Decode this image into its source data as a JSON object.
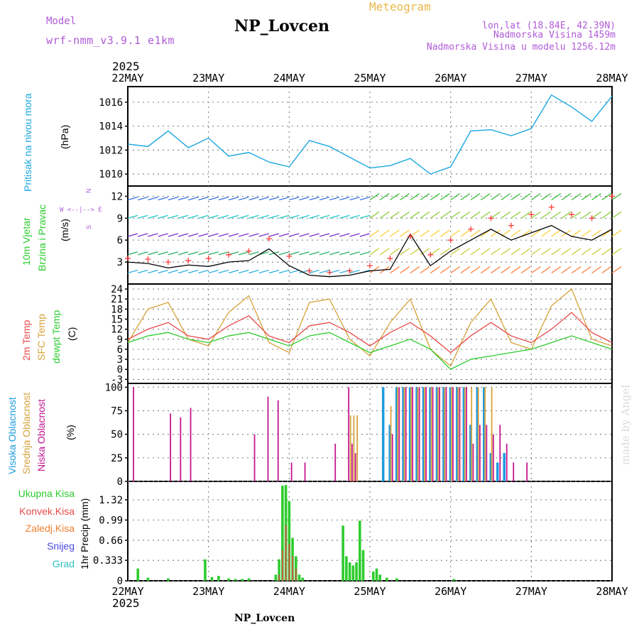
{
  "header": {
    "model_label": "Model",
    "model_name": "wrf-nmm_v3.9.1 e1km",
    "station": "NP_Lovcen",
    "product": "Meteogram",
    "lonlat": "lon,lat (18.84E, 42.39N)",
    "altitude": "Nadmorska Visina 1459m",
    "model_altitude": "Nadmorska Visina u modelu 1256.12m",
    "year": "2025",
    "footer_station": "NP_Lovcen",
    "watermark": "made by Angel"
  },
  "colors": {
    "pressure": "#1aa7e0",
    "wind_speed": "#000000",
    "gust_marker": "#ff3b3b",
    "temp_2m": "#e84a4a",
    "temp_sfc": "#d7a23a",
    "dewpoint": "#2ecc2e",
    "cloud_high": "#1e9be0",
    "cloud_mid": "#d7a23a",
    "cloud_low": "#c2168e",
    "precip_total": "#2ecc2e",
    "precip_conv": "#e84a4a",
    "title_purple": "#b05ad8",
    "title_orange": "#e8b84a"
  },
  "axes": {
    "x_dates": [
      "22MAY",
      "23MAY",
      "24MAY",
      "25MAY",
      "26MAY",
      "27MAY",
      "28MAY"
    ]
  },
  "panels": {
    "pressure": {
      "label": "Pritisak na nivou mora",
      "unit": "(hPa)",
      "ticks": [
        "1010",
        "1012",
        "1014",
        "1016"
      ]
    },
    "wind": {
      "label_line1": "10m Vjetar",
      "label_line2": "Brzina i Pravac",
      "unit": "(m/s)",
      "compass_ns": "N",
      "compass_ew": "W  <--|-->  E",
      "compass_s": "S",
      "ticks": [
        "3",
        "6",
        "9",
        "12"
      ]
    },
    "temp": {
      "label_2m": "2m Temp",
      "label_sfc": "SFC Temp",
      "label_dew": "dewpt Temp",
      "unit": "(C)",
      "ticks": [
        "-3",
        "0",
        "3",
        "6",
        "9",
        "12",
        "15",
        "18",
        "21",
        "24"
      ]
    },
    "cloud": {
      "label_high": "Visoka Oblacnost",
      "label_mid": "Srednja Oblacnost",
      "label_low": "Niska Oblacnost",
      "unit": "(%)",
      "ticks": [
        "0",
        "25",
        "50",
        "75",
        "100"
      ]
    },
    "precip": {
      "legend_total": "Ukupna Kisa",
      "legend_conv": "Konvek.Kisa",
      "legend_frozen": "Zaledj.Kisa",
      "legend_snow": "Snijeg",
      "legend_hail": "Grad",
      "unit": "1hr Precip (mm)",
      "ticks": [
        "0",
        "0.333",
        "0.66",
        "0.99",
        "1.32"
      ]
    }
  },
  "chart_data": [
    {
      "type": "line",
      "title": "Pritisak na nivou mora",
      "ylabel": "(hPa)",
      "ylim": [
        1009,
        1017
      ],
      "x": [
        0,
        6,
        12,
        18,
        24,
        30,
        36,
        42,
        48,
        54,
        60,
        66,
        72,
        78,
        84,
        90,
        96,
        102,
        108,
        114,
        120,
        126,
        132,
        138,
        144
      ],
      "series": [
        {
          "values": [
            1012.5,
            1012.3,
            1013.6,
            1012.2,
            1013.0,
            1011.5,
            1011.8,
            1011.0,
            1010.6,
            1012.8,
            1012.3,
            1011.4,
            1010.5,
            1010.7,
            1011.3,
            1010.0,
            1010.6,
            1013.6,
            1013.7,
            1013.2,
            1013.8,
            1016.6,
            1015.6,
            1014.4,
            1016.5
          ]
        }
      ]
    },
    {
      "type": "line",
      "title": "10m Vjetar Brzina i Pravac",
      "ylabel": "(m/s)",
      "ylim": [
        0,
        13
      ],
      "x": [
        0,
        6,
        12,
        18,
        24,
        30,
        36,
        42,
        48,
        54,
        60,
        66,
        72,
        78,
        84,
        90,
        96,
        102,
        108,
        114,
        120,
        126,
        132,
        138,
        144
      ],
      "series": [
        {
          "name": "speed",
          "values": [
            3.0,
            2.8,
            2.2,
            2.6,
            2.4,
            3.0,
            3.2,
            4.8,
            2.5,
            1.2,
            1.0,
            1.2,
            1.8,
            2.0,
            6.8,
            2.5,
            4.5,
            6.0,
            7.5,
            6.0,
            7.0,
            8.0,
            6.5,
            6.0,
            7.5
          ]
        },
        {
          "name": "gust",
          "values": [
            3.5,
            3.4,
            3.0,
            3.2,
            3.5,
            4.0,
            4.5,
            6.2,
            3.8,
            1.8,
            1.6,
            1.8,
            2.5,
            3.5,
            6.5,
            4.0,
            6.0,
            7.5,
            9.0,
            8.0,
            9.5,
            10.5,
            9.5,
            9.0,
            12.0
          ]
        }
      ]
    },
    {
      "type": "line",
      "ylabel": "(C)",
      "ylim": [
        -4,
        25
      ],
      "x": [
        0,
        6,
        12,
        18,
        24,
        30,
        36,
        42,
        48,
        54,
        60,
        66,
        72,
        78,
        84,
        90,
        96,
        102,
        108,
        114,
        120,
        126,
        132,
        138,
        144
      ],
      "series": [
        {
          "name": "2m Temp",
          "values": [
            9,
            12,
            14,
            10,
            9,
            13,
            16,
            10,
            8,
            13,
            14,
            11,
            7,
            11,
            14,
            10,
            5,
            10,
            14,
            10,
            8,
            12,
            17,
            11,
            8
          ]
        },
        {
          "name": "SFC Temp",
          "values": [
            8,
            18,
            20,
            9,
            7,
            17,
            22,
            8,
            5,
            20,
            21,
            9,
            4,
            14,
            21,
            6,
            1,
            14,
            21,
            8,
            6,
            19,
            24,
            9,
            7
          ]
        },
        {
          "name": "dewpt Temp",
          "values": [
            8,
            10,
            11,
            9,
            8,
            10,
            11,
            9,
            7,
            10,
            11,
            8,
            5,
            7,
            9,
            6,
            0,
            3,
            4,
            5,
            6,
            8,
            10,
            8,
            6
          ]
        }
      ]
    },
    {
      "type": "bar",
      "ylabel": "(%)",
      "ylim": [
        0,
        100
      ],
      "x": [
        1,
        12,
        15,
        18,
        19,
        37,
        41,
        44,
        48,
        52,
        61,
        65,
        66,
        67,
        68,
        76,
        78,
        80,
        82,
        84,
        86,
        88,
        90,
        92,
        94,
        96,
        98,
        100,
        102,
        104,
        106,
        108,
        110,
        112,
        114,
        118
      ],
      "series": [
        {
          "name": "Visoka Oblacnost",
          "values": [
            0,
            0,
            0,
            0,
            0,
            0,
            0,
            0,
            0,
            0,
            0,
            0,
            0,
            0,
            0,
            100,
            60,
            100,
            100,
            100,
            100,
            100,
            100,
            100,
            100,
            100,
            100,
            100,
            60,
            100,
            100,
            30,
            20,
            30,
            0,
            0
          ]
        },
        {
          "name": "Srednja Oblacnost",
          "values": [
            0,
            0,
            0,
            0,
            0,
            0,
            0,
            0,
            0,
            0,
            0,
            0,
            70,
            70,
            70,
            0,
            80,
            100,
            100,
            100,
            100,
            100,
            100,
            100,
            100,
            100,
            100,
            100,
            100,
            100,
            100,
            100,
            0,
            0,
            0,
            0
          ]
        },
        {
          "name": "Niska Oblacnost",
          "values": [
            100,
            72,
            68,
            78,
            0,
            50,
            90,
            86,
            20,
            20,
            40,
            100,
            40,
            30,
            0,
            0,
            50,
            100,
            100,
            100,
            100,
            100,
            100,
            100,
            100,
            100,
            100,
            100,
            40,
            60,
            60,
            50,
            60,
            40,
            20,
            20
          ]
        }
      ]
    },
    {
      "type": "bar",
      "ylabel": "1hr Precip (mm)",
      "ylim": [
        0,
        1.6
      ],
      "x": [
        3,
        6,
        12,
        23,
        25,
        27,
        30,
        32,
        34,
        36,
        44,
        45,
        46,
        47,
        48,
        49,
        50,
        51,
        52,
        64,
        65,
        66,
        67,
        68,
        69,
        70,
        73,
        74,
        75,
        77,
        80,
        97
      ],
      "series": [
        {
          "name": "Ukupna Kisa",
          "values": [
            0.2,
            0.05,
            0.04,
            0.35,
            0.06,
            0.08,
            0.04,
            0.03,
            0.03,
            0.04,
            0.1,
            0.35,
            1.55,
            1.56,
            1.3,
            0.7,
            0.4,
            0.1,
            0.05,
            0.9,
            0.4,
            0.3,
            0.25,
            0.3,
            0.98,
            0.5,
            0.15,
            0.2,
            0.1,
            0.05,
            0.04,
            0.03
          ]
        },
        {
          "name": "Konvek.Kisa",
          "values": [
            0,
            0,
            0,
            0,
            0,
            0,
            0,
            0,
            0,
            0,
            0,
            0.1,
            0.5,
            0.9,
            0.6,
            0.4,
            0.2,
            0,
            0,
            0,
            0,
            0,
            0,
            0,
            0,
            0,
            0,
            0,
            0,
            0,
            0,
            0
          ]
        }
      ]
    }
  ]
}
